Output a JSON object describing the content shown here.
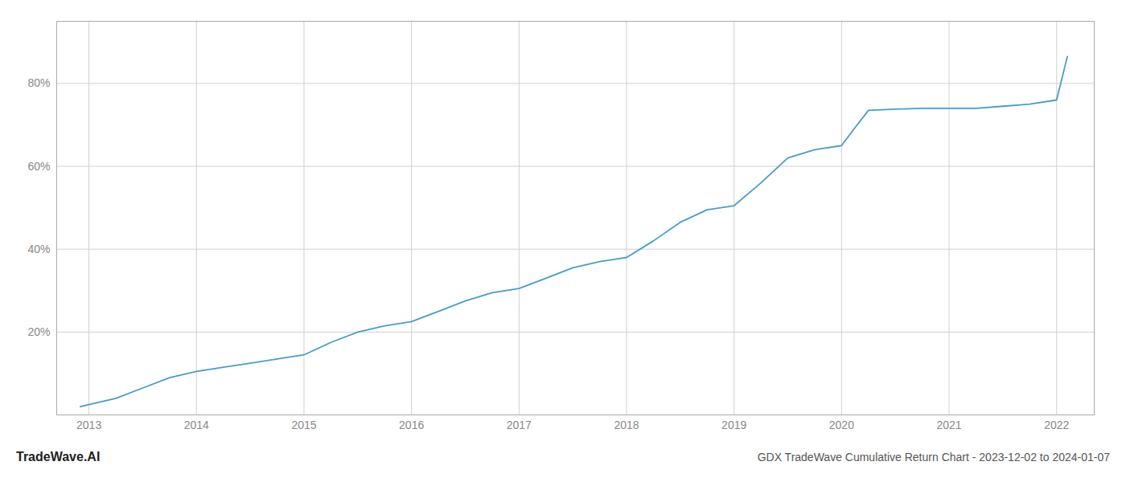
{
  "chart_data": {
    "type": "line",
    "title": "GDX TradeWave Cumulative Return Chart - 2023-12-02 to 2024-01-07",
    "annotations": [
      "TradeWave.AI"
    ],
    "x": [
      2012.92,
      2013.0,
      2013.25,
      2013.5,
      2013.75,
      2014.0,
      2014.25,
      2014.5,
      2014.75,
      2015.0,
      2015.25,
      2015.5,
      2015.75,
      2016.0,
      2016.25,
      2016.5,
      2016.75,
      2017.0,
      2017.25,
      2017.5,
      2017.75,
      2018.0,
      2018.25,
      2018.5,
      2018.75,
      2019.0,
      2019.25,
      2019.5,
      2019.75,
      2020.0,
      2020.1,
      2020.25,
      2020.5,
      2020.75,
      2021.0,
      2021.1,
      2021.25,
      2021.5,
      2021.75,
      2022.0,
      2022.1
    ],
    "values": [
      2.0,
      2.5,
      4.0,
      6.5,
      9.0,
      10.5,
      11.5,
      12.5,
      13.5,
      14.5,
      17.5,
      20.0,
      21.5,
      22.5,
      25.0,
      27.5,
      29.5,
      30.5,
      33.0,
      35.5,
      37.0,
      38.0,
      42.0,
      46.5,
      49.5,
      50.5,
      56.0,
      62.0,
      64.0,
      65.0,
      68.5,
      73.5,
      73.8,
      74.0,
      74.0,
      74.0,
      74.0,
      74.5,
      75.0,
      76.0,
      86.5
    ],
    "color": "#4a9cc7",
    "xlim": [
      2012.7,
      2022.35
    ],
    "xticks": [
      2013,
      2014,
      2015,
      2016,
      2017,
      2018,
      2019,
      2020,
      2021,
      2022
    ],
    "ylim": [
      0,
      95
    ],
    "yticks": [
      {
        "value": 20,
        "label": "20%"
      },
      {
        "value": 40,
        "label": "40%"
      },
      {
        "value": 60,
        "label": "60%"
      },
      {
        "value": 80,
        "label": "80%"
      }
    ],
    "grid": true
  }
}
